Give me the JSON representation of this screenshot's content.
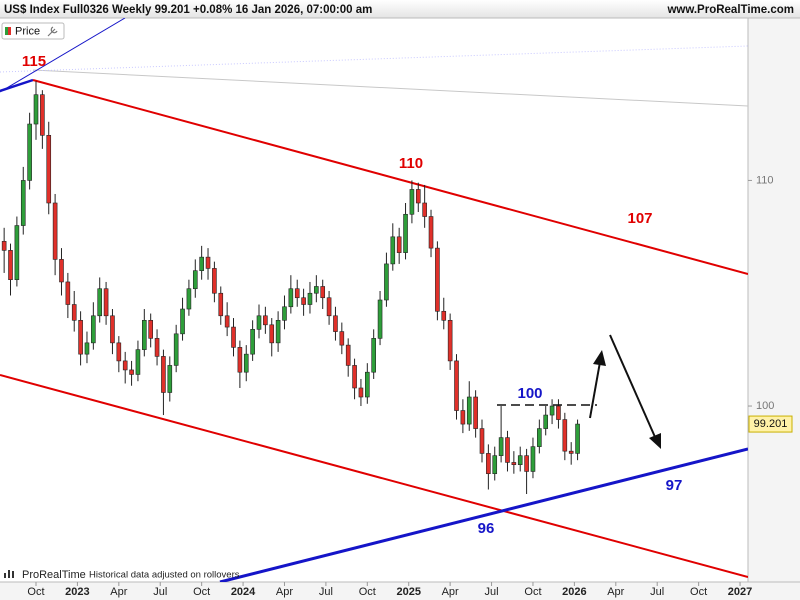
{
  "chart_data": {
    "type": "candlestick",
    "title": "US$ Index Full0326 Weekly 99.201 +0.08% 16 Jan 2026, 07:00:00 am",
    "source": "www.ProRealTime.com",
    "legend": "Price",
    "footer_brand": "ProRealTime",
    "footer_note": "Historical data adjusted on rollovers",
    "last_price": 99.201,
    "up_color": "#2e9e3a",
    "down_color": "#e0302a",
    "xlim": [
      -11.3,
      223.5
    ],
    "ylim": [
      92.2,
      117.2
    ],
    "yticks": [
      100,
      110
    ],
    "xticks": [
      {
        "value": 0,
        "label": "Oct"
      },
      {
        "value": 13,
        "label": "2023"
      },
      {
        "value": 26,
        "label": "Apr"
      },
      {
        "value": 39,
        "label": "Jul"
      },
      {
        "value": 52,
        "label": "Oct"
      },
      {
        "value": 65,
        "label": "2024"
      },
      {
        "value": 78,
        "label": "Apr"
      },
      {
        "value": 91,
        "label": "Jul"
      },
      {
        "value": 104,
        "label": "Oct"
      },
      {
        "value": 117,
        "label": "2025"
      },
      {
        "value": 130,
        "label": "Apr"
      },
      {
        "value": 143,
        "label": "Jul"
      },
      {
        "value": 156,
        "label": "Oct"
      },
      {
        "value": 169,
        "label": "2026"
      },
      {
        "value": 182,
        "label": "Apr"
      },
      {
        "value": 195,
        "label": "Jul"
      },
      {
        "value": 208,
        "label": "Oct"
      },
      {
        "value": 221,
        "label": "2027"
      }
    ],
    "x": [
      -10,
      -8,
      -6,
      -4,
      -2,
      0,
      2,
      4,
      6,
      8,
      10,
      12,
      14,
      16,
      18,
      20,
      22,
      24,
      26,
      28,
      30,
      32,
      34,
      36,
      38,
      40,
      42,
      44,
      46,
      48,
      50,
      52,
      54,
      56,
      58,
      60,
      62,
      64,
      66,
      68,
      70,
      72,
      74,
      76,
      78,
      80,
      82,
      84,
      86,
      88,
      90,
      92,
      94,
      96,
      98,
      100,
      102,
      104,
      106,
      108,
      110,
      112,
      114,
      116,
      118,
      120,
      122,
      124,
      126,
      128,
      130,
      132,
      134,
      136,
      138,
      140,
      142,
      144,
      146,
      148,
      150,
      152,
      154,
      156,
      158,
      160,
      162,
      164,
      166,
      168,
      170
    ],
    "values": [
      [
        107.3,
        107.9,
        105.9,
        106.9
      ],
      [
        106.9,
        107.2,
        104.9,
        105.6
      ],
      [
        105.6,
        108.4,
        105.3,
        108.0
      ],
      [
        108.0,
        110.6,
        107.6,
        110.0
      ],
      [
        110.0,
        113.0,
        109.6,
        112.5
      ],
      [
        112.5,
        114.4,
        111.8,
        113.8
      ],
      [
        113.8,
        114.0,
        111.4,
        112.0
      ],
      [
        112.0,
        112.6,
        108.5,
        109.0
      ],
      [
        109.0,
        109.4,
        105.8,
        106.5
      ],
      [
        106.5,
        107.0,
        104.9,
        105.5
      ],
      [
        105.5,
        105.9,
        103.9,
        104.5
      ],
      [
        104.5,
        105.1,
        103.3,
        103.8
      ],
      [
        103.8,
        104.2,
        101.8,
        102.3
      ],
      [
        102.3,
        103.3,
        101.9,
        102.8
      ],
      [
        102.8,
        104.6,
        102.5,
        104.0
      ],
      [
        104.0,
        105.7,
        103.7,
        105.2
      ],
      [
        105.2,
        105.5,
        103.6,
        104.0
      ],
      [
        104.0,
        104.3,
        102.3,
        102.8
      ],
      [
        102.8,
        103.1,
        101.5,
        102.0
      ],
      [
        102.0,
        102.4,
        101.0,
        101.6
      ],
      [
        101.6,
        102.0,
        100.9,
        101.4
      ],
      [
        101.4,
        102.9,
        101.1,
        102.5
      ],
      [
        102.5,
        104.3,
        102.2,
        103.8
      ],
      [
        103.8,
        104.1,
        102.6,
        103.0
      ],
      [
        103.0,
        103.4,
        101.8,
        102.2
      ],
      [
        102.2,
        102.5,
        99.6,
        100.6
      ],
      [
        100.6,
        102.2,
        100.2,
        101.8
      ],
      [
        101.8,
        103.6,
        101.5,
        103.2
      ],
      [
        103.2,
        104.8,
        102.9,
        104.3
      ],
      [
        104.3,
        105.6,
        104.0,
        105.2
      ],
      [
        105.2,
        106.5,
        104.8,
        106.0
      ],
      [
        106.0,
        107.1,
        105.6,
        106.6
      ],
      [
        106.6,
        107.0,
        105.6,
        106.1
      ],
      [
        106.1,
        106.4,
        104.6,
        105.0
      ],
      [
        105.0,
        105.3,
        103.6,
        104.0
      ],
      [
        104.0,
        104.6,
        103.1,
        103.5
      ],
      [
        103.5,
        103.9,
        102.2,
        102.6
      ],
      [
        102.6,
        102.9,
        100.8,
        101.5
      ],
      [
        101.5,
        102.7,
        101.1,
        102.3
      ],
      [
        102.3,
        103.8,
        102.0,
        103.4
      ],
      [
        103.4,
        104.5,
        103.0,
        104.0
      ],
      [
        104.0,
        104.4,
        103.2,
        103.6
      ],
      [
        103.6,
        103.9,
        102.2,
        102.8
      ],
      [
        102.8,
        104.2,
        102.4,
        103.8
      ],
      [
        103.8,
        104.9,
        103.4,
        104.4
      ],
      [
        104.4,
        105.8,
        104.1,
        105.2
      ],
      [
        105.2,
        105.6,
        104.4,
        104.8
      ],
      [
        104.8,
        105.2,
        104.0,
        104.5
      ],
      [
        104.5,
        105.5,
        104.1,
        105.0
      ],
      [
        105.0,
        105.8,
        104.6,
        105.3
      ],
      [
        105.3,
        105.6,
        104.3,
        104.8
      ],
      [
        104.8,
        105.1,
        103.6,
        104.0
      ],
      [
        104.0,
        104.4,
        102.9,
        103.3
      ],
      [
        103.3,
        103.7,
        102.3,
        102.7
      ],
      [
        102.7,
        103.0,
        101.3,
        101.8
      ],
      [
        101.8,
        102.1,
        100.3,
        100.8
      ],
      [
        100.8,
        101.2,
        100.0,
        100.4
      ],
      [
        100.4,
        101.9,
        100.1,
        101.5
      ],
      [
        101.5,
        103.4,
        101.2,
        103.0
      ],
      [
        103.0,
        105.1,
        102.7,
        104.7
      ],
      [
        104.7,
        106.8,
        104.4,
        106.3
      ],
      [
        106.3,
        108.1,
        106.0,
        107.5
      ],
      [
        107.5,
        107.9,
        106.3,
        106.8
      ],
      [
        106.8,
        109.0,
        106.5,
        108.5
      ],
      [
        108.5,
        110.0,
        108.1,
        109.6
      ],
      [
        109.6,
        109.9,
        108.6,
        109.0
      ],
      [
        109.0,
        109.8,
        107.9,
        108.4
      ],
      [
        108.4,
        108.7,
        106.6,
        107.0
      ],
      [
        107.0,
        107.3,
        103.8,
        104.2
      ],
      [
        104.2,
        104.8,
        103.4,
        103.8
      ],
      [
        103.8,
        104.1,
        101.6,
        102.0
      ],
      [
        102.0,
        102.3,
        99.4,
        99.8
      ],
      [
        99.8,
        100.3,
        98.8,
        99.2
      ],
      [
        99.2,
        101.1,
        98.9,
        100.4
      ],
      [
        100.4,
        100.7,
        98.6,
        99.0
      ],
      [
        99.0,
        99.4,
        97.5,
        97.9
      ],
      [
        97.9,
        98.3,
        96.3,
        97.0
      ],
      [
        97.0,
        98.2,
        96.7,
        97.8
      ],
      [
        97.8,
        100.0,
        97.5,
        98.6
      ],
      [
        98.6,
        98.9,
        97.1,
        97.5
      ],
      [
        97.5,
        98.0,
        97.0,
        97.4
      ],
      [
        97.4,
        98.2,
        97.1,
        97.8
      ],
      [
        97.8,
        98.1,
        96.1,
        97.1
      ],
      [
        97.1,
        98.6,
        96.8,
        98.2
      ],
      [
        98.2,
        99.4,
        97.9,
        99.0
      ],
      [
        99.0,
        100.0,
        98.7,
        99.6
      ],
      [
        99.6,
        100.3,
        99.2,
        100.0
      ],
      [
        100.0,
        100.3,
        99.0,
        99.4
      ],
      [
        99.4,
        99.7,
        97.6,
        98.0
      ],
      [
        98.0,
        98.4,
        97.4,
        97.9
      ],
      [
        97.9,
        99.4,
        97.6,
        99.2
      ]
    ],
    "annotations": [
      {
        "text": "115",
        "color": "#e00000"
      },
      {
        "text": "110",
        "color": "#e00000"
      },
      {
        "text": "107",
        "color": "#e00000"
      },
      {
        "text": "100",
        "color": "#1515c8"
      },
      {
        "text": "97",
        "color": "#1515c8"
      },
      {
        "text": "96",
        "color": "#1515c8"
      }
    ]
  }
}
